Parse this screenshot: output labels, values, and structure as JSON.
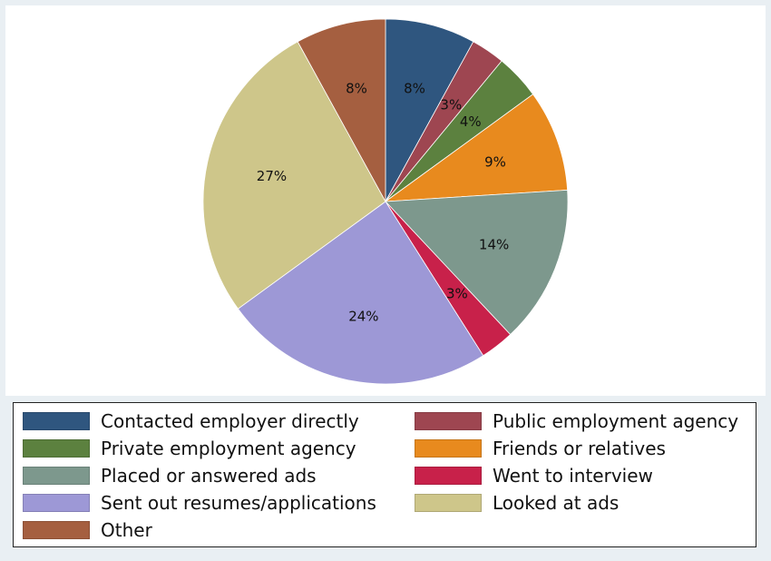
{
  "chart_data": {
    "type": "pie",
    "title": "",
    "start_angle_deg": 90,
    "direction": "clockwise",
    "legend_position": "bottom",
    "slices": [
      {
        "label": "Contacted employer directly",
        "value": 8,
        "display": "8%",
        "color": "#2f567f"
      },
      {
        "label": "Public employment agency",
        "value": 3,
        "display": "3%",
        "color": "#9e4651"
      },
      {
        "label": "Private employment agency",
        "value": 4,
        "display": "4%",
        "color": "#5c813f"
      },
      {
        "label": "Friends or relatives",
        "value": 9,
        "display": "9%",
        "color": "#e88a1e"
      },
      {
        "label": "Placed or answered ads",
        "value": 14,
        "display": "14%",
        "color": "#7d988d"
      },
      {
        "label": "Went to interview",
        "value": 3,
        "display": "3%",
        "color": "#c8214a"
      },
      {
        "label": "Sent out resumes/applications",
        "value": 24,
        "display": "24%",
        "color": "#9d98d6"
      },
      {
        "label": "Looked at ads",
        "value": 27,
        "display": "27%",
        "color": "#cec68a"
      },
      {
        "label": "Other",
        "value": 8,
        "display": "8%",
        "color": "#a55f40"
      }
    ]
  }
}
